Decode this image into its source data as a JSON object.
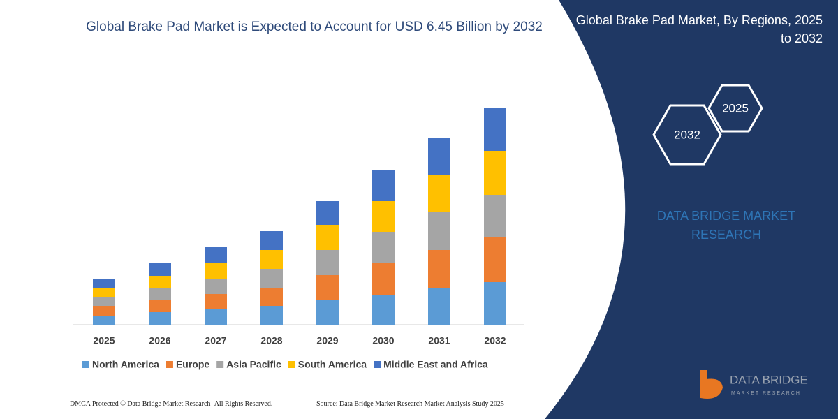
{
  "chart_data": {
    "type": "bar",
    "stacked": true,
    "title": "Global Brake Pad Market is Expected to Account for USD 6.45 Billion by 2032",
    "categories": [
      "2025",
      "2026",
      "2027",
      "2028",
      "2029",
      "2030",
      "2031",
      "2032"
    ],
    "series": [
      {
        "name": "North America",
        "color": "#5b9bd5",
        "values": [
          13,
          18,
          22,
          27,
          35,
          43,
          53,
          61
        ]
      },
      {
        "name": "Europe",
        "color": "#ed7d31",
        "values": [
          14,
          17,
          22,
          26,
          36,
          46,
          54,
          64
        ]
      },
      {
        "name": "Asia Pacific",
        "color": "#a5a5a5",
        "values": [
          12,
          17,
          22,
          27,
          36,
          44,
          54,
          61
        ]
      },
      {
        "name": "South America",
        "color": "#ffc000",
        "values": [
          14,
          18,
          22,
          27,
          36,
          44,
          53,
          63
        ]
      },
      {
        "name": "Middle East and Africa",
        "color": "#4472c4",
        "values": [
          13,
          18,
          23,
          27,
          34,
          45,
          53,
          62
        ]
      }
    ],
    "ylim": [
      0,
      320
    ],
    "grid": false
  },
  "panel": {
    "title": "Global Brake Pad Market, By Regions, 2025 to 2032",
    "hexagons": [
      "2025",
      "2032"
    ],
    "brand": "DATA BRIDGE MARKET RESEARCH",
    "logo": {
      "name": "DATA BRIDGE",
      "tagline": "MARKET RESEARCH"
    }
  },
  "footer": {
    "left": "DMCA Protected © Data Bridge Market Research- All Rights Reserved.",
    "right": "Source: Data Bridge Market Research Market Analysis Study 2025"
  }
}
